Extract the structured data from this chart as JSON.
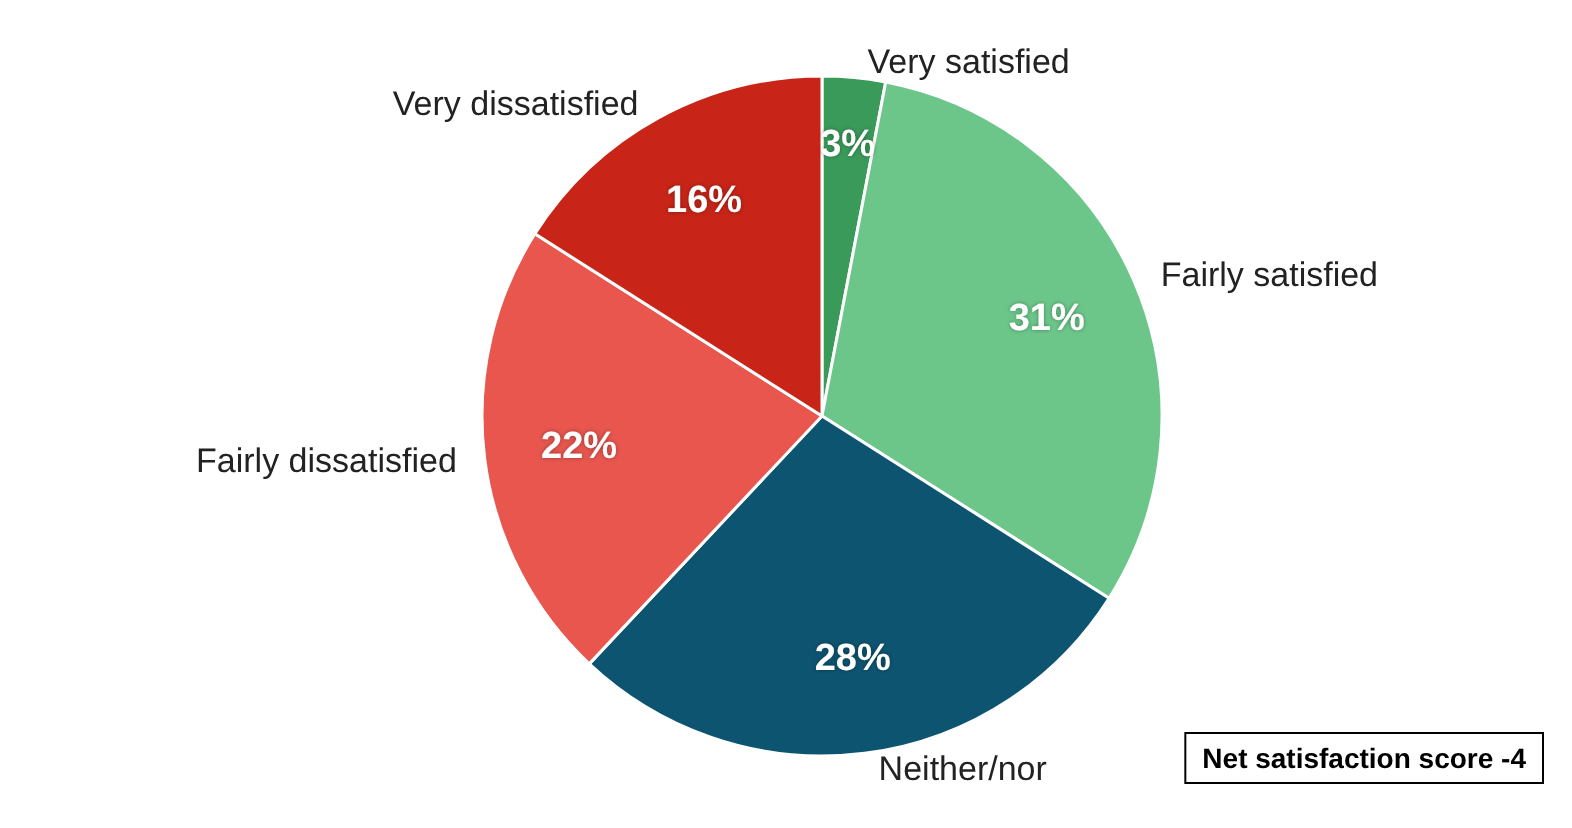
{
  "chart_data": {
    "type": "pie",
    "categories": [
      "Very satisfied",
      "Fairly satisfied",
      "Neither/nor",
      "Fairly dissatisfied",
      "Very dissatisfied"
    ],
    "values": [
      3,
      31,
      28,
      22,
      16
    ],
    "colors": [
      "#3a9a5a",
      "#6cc68a",
      "#0d5470",
      "#e8564e",
      "#c82418"
    ],
    "value_labels": [
      "3%",
      "31%",
      "28%",
      "22%",
      "16%"
    ],
    "legend": false,
    "annotations": [
      "Net satisfaction score -4"
    ]
  }
}
